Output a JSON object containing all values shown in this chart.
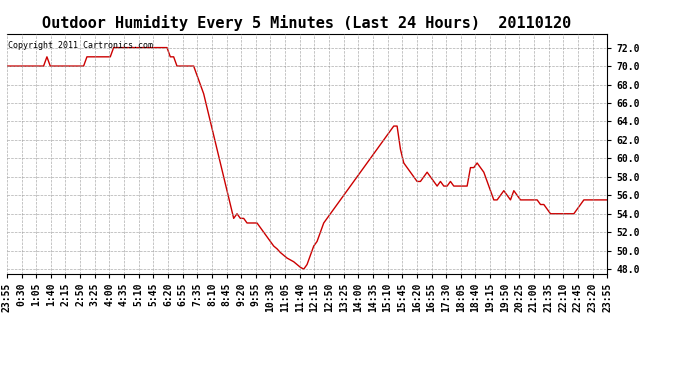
{
  "title": "Outdoor Humidity Every 5 Minutes (Last 24 Hours)  20110120",
  "copyright_text": "Copyright 2011 Cartronics.com",
  "ylim": [
    47.5,
    73.5
  ],
  "yticks": [
    48.0,
    50.0,
    52.0,
    54.0,
    56.0,
    58.0,
    60.0,
    62.0,
    64.0,
    66.0,
    68.0,
    70.0,
    72.0
  ],
  "line_color": "#cc0000",
  "background_color": "#ffffff",
  "grid_color": "#999999",
  "title_fontsize": 11,
  "tick_fontsize": 7,
  "copyright_fontsize": 6,
  "x_labels": [
    "23:55",
    "0:30",
    "1:05",
    "1:40",
    "2:15",
    "2:50",
    "3:25",
    "4:00",
    "4:35",
    "5:10",
    "5:45",
    "6:20",
    "6:55",
    "7:35",
    "8:10",
    "8:45",
    "9:20",
    "9:55",
    "10:30",
    "11:05",
    "11:40",
    "12:15",
    "12:50",
    "13:25",
    "14:00",
    "14:35",
    "15:10",
    "15:45",
    "16:20",
    "16:55",
    "17:30",
    "18:05",
    "18:40",
    "19:15",
    "19:50",
    "20:25",
    "21:00",
    "21:35",
    "22:10",
    "22:45",
    "23:20",
    "23:55"
  ],
  "humidity": [
    70.0,
    70.0,
    70.0,
    70.0,
    70.0,
    70.0,
    70.0,
    70.0,
    70.0,
    70.0,
    70.0,
    70.0,
    71.0,
    70.0,
    70.0,
    70.0,
    70.0,
    70.0,
    70.0,
    70.0,
    70.0,
    70.0,
    70.0,
    70.0,
    71.0,
    71.0,
    71.0,
    71.0,
    71.0,
    71.0,
    71.0,
    71.0,
    72.0,
    72.0,
    72.0,
    72.0,
    72.0,
    72.0,
    72.0,
    72.0,
    72.0,
    72.0,
    72.0,
    72.0,
    72.0,
    72.0,
    72.0,
    72.0,
    72.0,
    71.0,
    71.0,
    70.0,
    70.0,
    70.0,
    70.0,
    70.0,
    70.0,
    69.0,
    68.0,
    67.0,
    65.5,
    64.0,
    62.5,
    61.0,
    59.5,
    58.0,
    56.5,
    55.0,
    53.5,
    54.0,
    53.5,
    53.5,
    53.0,
    53.0,
    53.0,
    53.0,
    52.5,
    52.0,
    51.5,
    51.0,
    50.5,
    50.2,
    49.8,
    49.5,
    49.2,
    49.0,
    48.8,
    48.5,
    48.2,
    48.0,
    48.5,
    49.5,
    50.5,
    51.0,
    52.0,
    53.0,
    53.5,
    54.0,
    54.5,
    55.0,
    55.5,
    56.0,
    56.5,
    57.0,
    57.5,
    58.0,
    58.5,
    59.0,
    59.5,
    60.0,
    60.5,
    61.0,
    61.5,
    62.0,
    62.5,
    63.0,
    63.5,
    63.5,
    61.0,
    59.5,
    59.0,
    58.5,
    58.0,
    57.5,
    57.5,
    58.0,
    58.5,
    58.0,
    57.5,
    57.0,
    57.5,
    57.0,
    57.0,
    57.5,
    57.0,
    57.0,
    57.0,
    57.0,
    57.0,
    59.0,
    59.0,
    59.5,
    59.0,
    58.5,
    57.5,
    56.5,
    55.5,
    55.5,
    56.0,
    56.5,
    56.0,
    55.5,
    56.5,
    56.0,
    55.5,
    55.5,
    55.5,
    55.5,
    55.5,
    55.5,
    55.0,
    55.0,
    54.5,
    54.0,
    54.0,
    54.0,
    54.0,
    54.0,
    54.0,
    54.0,
    54.0,
    54.5,
    55.0,
    55.5,
    55.5,
    55.5,
    55.5,
    55.5,
    55.5,
    55.5,
    55.5
  ]
}
